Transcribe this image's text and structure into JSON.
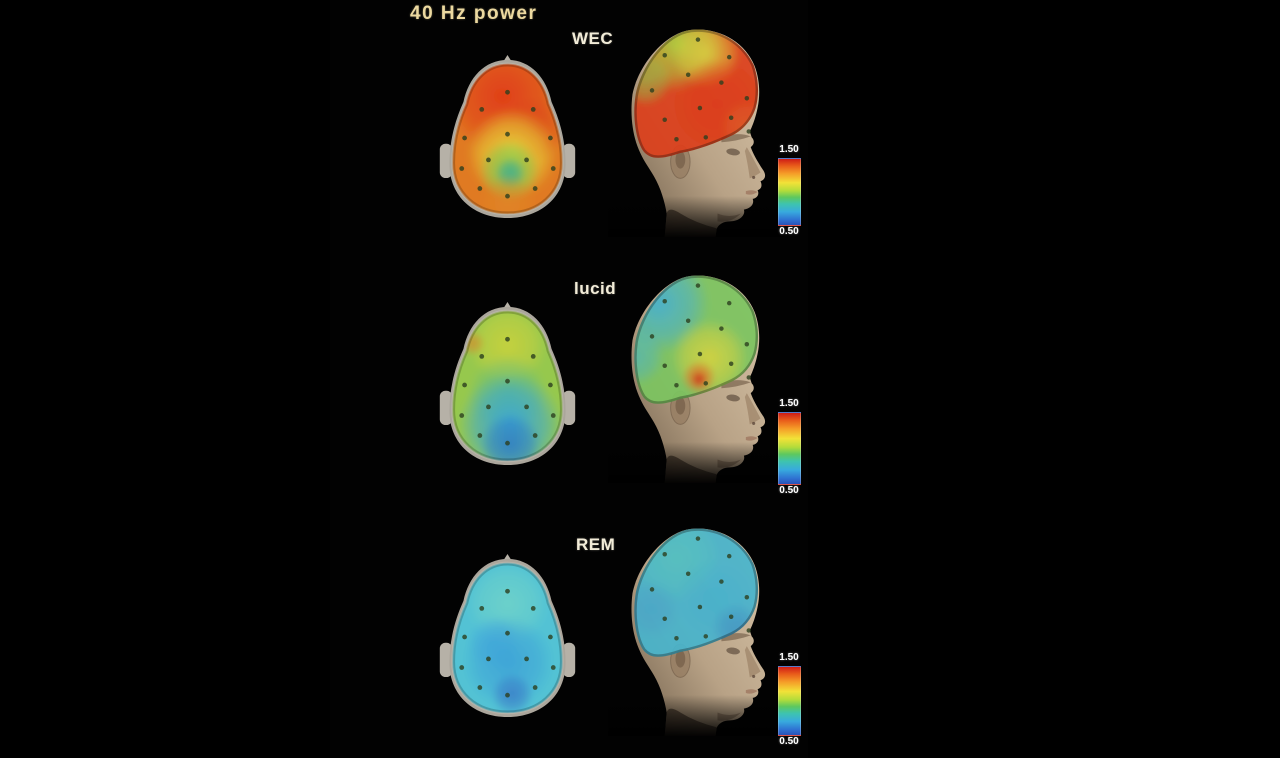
{
  "figure": {
    "title": "40 Hz power",
    "rows": [
      {
        "label": "WEC",
        "colorbar": {
          "max": "1.50",
          "min": "0.50"
        }
      },
      {
        "label": "lucid",
        "colorbar": {
          "max": "1.50",
          "min": "0.50"
        }
      },
      {
        "label": "REM",
        "colorbar": {
          "max": "1.50",
          "min": "0.50"
        }
      }
    ]
  },
  "colors": {
    "background": "#000000",
    "title_text": "#ecd9a0",
    "condition_label_text": "#f2ecd8",
    "colorbar_tick_text": "#ffffff",
    "electrode_dot": "#2c3f1e",
    "head_model_skin": "#c4b194"
  },
  "chart_data": {
    "type": "heatmap",
    "subtype": "eeg-topographic-scalp-maps",
    "title": "40 Hz power",
    "conditions": [
      "WEC",
      "lucid",
      "REM"
    ],
    "views_per_condition": [
      "top-view scalp map",
      "three-quarter-view 3D head model"
    ],
    "colorbar": {
      "min": 0.5,
      "max": 1.5,
      "tick_labels": [
        "1.50",
        "0.50"
      ],
      "orientation": "vertical",
      "palette_top_to_bottom": [
        "#cf1d16",
        "#e85a1a",
        "#f59d28",
        "#f2e238",
        "#b4dc3a",
        "#5ec85e",
        "#3ec4ae",
        "#38aade",
        "#2f72d2",
        "#2a52b8"
      ]
    },
    "series": [
      {
        "name": "WEC",
        "regions": {
          "frontal": 1.4,
          "central": 1.1,
          "parietal": 0.95,
          "occipital": 1.2
        }
      },
      {
        "name": "lucid",
        "regions": {
          "frontal": 1.15,
          "frontal_hotspot": 1.35,
          "central": 0.95,
          "parietal": 0.8,
          "occipital": 0.7
        }
      },
      {
        "name": "REM",
        "regions": {
          "frontal": 0.8,
          "central": 0.75,
          "parietal": 0.72,
          "occipital": 0.65
        }
      }
    ],
    "scalp_maps": {
      "WEC": {
        "top": {
          "base": "#e07a22",
          "blobs": [
            {
              "x": 70,
              "y": 46,
              "r": 62,
              "c": "#e03c18",
              "o": 0.95
            },
            {
              "x": 102,
              "y": 80,
              "r": 34,
              "c": "#dd4418",
              "o": 0.75
            },
            {
              "x": 80,
              "y": 106,
              "r": 48,
              "c": "#e6d83a",
              "o": 0.95
            },
            {
              "x": 77,
              "y": 124,
              "r": 32,
              "c": "#7cc452",
              "o": 0.9
            },
            {
              "x": 78,
              "y": 127,
              "r": 16,
              "c": "#3fae92",
              "o": 0.85
            },
            {
              "x": 75,
              "y": 158,
              "r": 30,
              "c": "#e08a28",
              "o": 0.6
            }
          ]
        },
        "side": {
          "base": "#dc3f1a",
          "blobs": [
            {
              "x": 70,
              "y": 22,
              "r": 50,
              "c": "#a8d23c",
              "o": 0.95
            },
            {
              "x": 100,
              "y": 32,
              "r": 36,
              "c": "#ddd83c",
              "o": 0.8
            },
            {
              "x": 38,
              "y": 58,
              "r": 28,
              "c": "#8cc84a",
              "o": 0.7
            },
            {
              "x": 112,
              "y": 84,
              "r": 46,
              "c": "#de3412",
              "o": 0.85
            },
            {
              "x": 140,
              "y": 106,
              "r": 26,
              "c": "#e05a22",
              "o": 0.7
            }
          ]
        }
      },
      "lucid": {
        "top": {
          "base": "#96c84e",
          "blobs": [
            {
              "x": 75,
              "y": 48,
              "r": 42,
              "c": "#ccd23c",
              "o": 0.85
            },
            {
              "x": 38,
              "y": 46,
              "r": 13,
              "c": "#d28c2e",
              "o": 0.8
            },
            {
              "x": 75,
              "y": 100,
              "r": 42,
              "c": "#52b890",
              "o": 0.6
            },
            {
              "x": 78,
              "y": 132,
              "r": 55,
              "c": "#38a6d8",
              "o": 0.95
            },
            {
              "x": 78,
              "y": 152,
              "r": 32,
              "c": "#2f7cc4",
              "o": 0.85
            }
          ]
        },
        "side": {
          "base": "#7cc460",
          "blobs": [
            {
              "x": 52,
              "y": 36,
              "r": 52,
              "c": "#3fb0d8",
              "o": 0.9
            },
            {
              "x": 28,
              "y": 90,
              "r": 30,
              "c": "#49b8c8",
              "o": 0.7
            },
            {
              "x": 104,
              "y": 92,
              "r": 40,
              "c": "#d8d63a",
              "o": 0.9
            },
            {
              "x": 93,
              "y": 112,
              "r": 17,
              "c": "#e0641e",
              "o": 0.85
            },
            {
              "x": 93,
              "y": 114,
              "r": 8,
              "c": "#cc2e14",
              "o": 0.9
            }
          ]
        }
      },
      "REM": {
        "top": {
          "base": "#52c2d4",
          "blobs": [
            {
              "x": 75,
              "y": 55,
              "r": 44,
              "c": "#72d4c8",
              "o": 0.8
            },
            {
              "x": 60,
              "y": 95,
              "r": 28,
              "c": "#44aade",
              "o": 0.6
            },
            {
              "x": 76,
              "y": 116,
              "r": 48,
              "c": "#3b9ed8",
              "o": 0.8
            },
            {
              "x": 80,
              "y": 150,
              "r": 22,
              "c": "#3b7ec8",
              "o": 0.85
            }
          ]
        },
        "side": {
          "base": "#49b4cc",
          "blobs": [
            {
              "x": 70,
              "y": 38,
              "r": 46,
              "c": "#52c4c0",
              "o": 0.8
            },
            {
              "x": 110,
              "y": 80,
              "r": 42,
              "c": "#3fb0d0",
              "o": 0.7
            },
            {
              "x": 132,
              "y": 110,
              "r": 26,
              "c": "#3a86c4",
              "o": 0.6
            },
            {
              "x": 44,
              "y": 90,
              "r": 30,
              "c": "#42a0cc",
              "o": 0.6
            }
          ]
        }
      }
    }
  }
}
